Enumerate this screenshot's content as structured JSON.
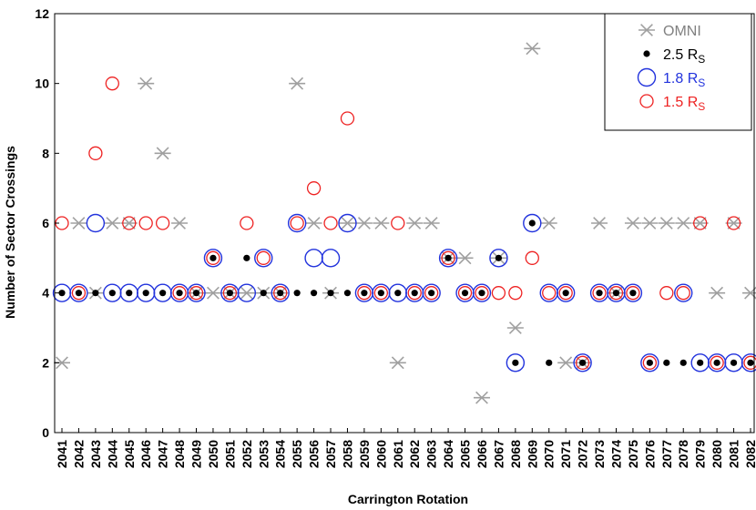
{
  "chart_data": {
    "type": "scatter",
    "title": "",
    "xlabel": "Carrington Rotation",
    "ylabel": "Number of Sector Crossings",
    "xlim": [
      2041,
      2082
    ],
    "ylim": [
      0,
      12
    ],
    "x_ticks": [
      "2041",
      "2042",
      "2043",
      "2044",
      "2045",
      "2046",
      "2047",
      "2048",
      "2049",
      "2050",
      "2051",
      "2052",
      "2053",
      "2054",
      "2055",
      "2056",
      "2057",
      "2058",
      "2059",
      "2060",
      "2061",
      "2062",
      "2063",
      "2064",
      "2065",
      "2066",
      "2067",
      "2068",
      "2069",
      "2070",
      "2071",
      "2072",
      "2073",
      "2074",
      "2075",
      "2076",
      "2077",
      "2078",
      "2079",
      "2080",
      "2081",
      "2082"
    ],
    "y_ticks": [
      "0",
      "2",
      "4",
      "6",
      "8",
      "10",
      "12"
    ],
    "grid": false,
    "legend_position": "top-right",
    "series": [
      {
        "name": "OMNI",
        "marker": "asterisk",
        "color": "#a0a0a0",
        "points": [
          [
            2041,
            2
          ],
          [
            2042,
            6
          ],
          [
            2043,
            4
          ],
          [
            2044,
            6
          ],
          [
            2045,
            6
          ],
          [
            2046,
            10
          ],
          [
            2047,
            8
          ],
          [
            2048,
            6
          ],
          [
            2049,
            4
          ],
          [
            2050,
            4
          ],
          [
            2051,
            4
          ],
          [
            2052,
            4
          ],
          [
            2053,
            4
          ],
          [
            2054,
            4
          ],
          [
            2055,
            10
          ],
          [
            2056,
            6
          ],
          [
            2057,
            4
          ],
          [
            2058,
            6
          ],
          [
            2059,
            6
          ],
          [
            2060,
            6
          ],
          [
            2061,
            2
          ],
          [
            2062,
            6
          ],
          [
            2063,
            6
          ],
          [
            2064,
            5
          ],
          [
            2065,
            5
          ],
          [
            2066,
            1
          ],
          [
            2067,
            5
          ],
          [
            2068,
            3
          ],
          [
            2069,
            11
          ],
          [
            2070,
            6
          ],
          [
            2071,
            2
          ],
          [
            2072,
            2
          ],
          [
            2073,
            6
          ],
          [
            2074,
            4
          ],
          [
            2075,
            6
          ],
          [
            2076,
            6
          ],
          [
            2077,
            6
          ],
          [
            2078,
            6
          ],
          [
            2079,
            6
          ],
          [
            2080,
            4
          ],
          [
            2081,
            6
          ],
          [
            2082,
            4
          ]
        ]
      },
      {
        "name": "2.5 R_S",
        "marker": "filled-circle",
        "color": "#000000",
        "points": [
          [
            2041,
            4
          ],
          [
            2042,
            4
          ],
          [
            2043,
            4
          ],
          [
            2044,
            4
          ],
          [
            2045,
            4
          ],
          [
            2046,
            4
          ],
          [
            2047,
            4
          ],
          [
            2048,
            4
          ],
          [
            2049,
            4
          ],
          [
            2050,
            5
          ],
          [
            2051,
            4
          ],
          [
            2052,
            5
          ],
          [
            2053,
            4
          ],
          [
            2054,
            4
          ],
          [
            2055,
            4
          ],
          [
            2056,
            4
          ],
          [
            2057,
            4
          ],
          [
            2058,
            4
          ],
          [
            2059,
            4
          ],
          [
            2060,
            4
          ],
          [
            2061,
            4
          ],
          [
            2062,
            4
          ],
          [
            2063,
            4
          ],
          [
            2064,
            5
          ],
          [
            2065,
            4
          ],
          [
            2066,
            4
          ],
          [
            2067,
            5
          ],
          [
            2068,
            2
          ],
          [
            2069,
            6
          ],
          [
            2070,
            2
          ],
          [
            2071,
            4
          ],
          [
            2072,
            2
          ],
          [
            2073,
            4
          ],
          [
            2074,
            4
          ],
          [
            2075,
            4
          ],
          [
            2076,
            2
          ],
          [
            2077,
            2
          ],
          [
            2078,
            2
          ],
          [
            2079,
            2
          ],
          [
            2080,
            2
          ],
          [
            2081,
            2
          ],
          [
            2082,
            2
          ]
        ]
      },
      {
        "name": "1.8 R_S",
        "marker": "open-circle-large",
        "color": "#2233dd",
        "points": [
          [
            2041,
            4
          ],
          [
            2042,
            4
          ],
          [
            2043,
            6
          ],
          [
            2044,
            4
          ],
          [
            2045,
            4
          ],
          [
            2046,
            4
          ],
          [
            2047,
            4
          ],
          [
            2048,
            4
          ],
          [
            2049,
            4
          ],
          [
            2050,
            5
          ],
          [
            2051,
            4
          ],
          [
            2052,
            4
          ],
          [
            2053,
            5
          ],
          [
            2054,
            4
          ],
          [
            2055,
            6
          ],
          [
            2056,
            5
          ],
          [
            2057,
            5
          ],
          [
            2058,
            6
          ],
          [
            2059,
            4
          ],
          [
            2060,
            4
          ],
          [
            2061,
            4
          ],
          [
            2062,
            4
          ],
          [
            2063,
            4
          ],
          [
            2064,
            5
          ],
          [
            2065,
            4
          ],
          [
            2066,
            4
          ],
          [
            2067,
            5
          ],
          [
            2068,
            2
          ],
          [
            2069,
            6
          ],
          [
            2070,
            4
          ],
          [
            2071,
            4
          ],
          [
            2072,
            2
          ],
          [
            2073,
            4
          ],
          [
            2074,
            4
          ],
          [
            2075,
            4
          ],
          [
            2076,
            2
          ],
          [
            2078,
            4
          ],
          [
            2079,
            2
          ],
          [
            2080,
            2
          ],
          [
            2081,
            2
          ],
          [
            2082,
            2
          ]
        ]
      },
      {
        "name": "1.5 R_S",
        "marker": "open-circle",
        "color": "#ee2222",
        "points": [
          [
            2041,
            6
          ],
          [
            2042,
            4
          ],
          [
            2043,
            8
          ],
          [
            2044,
            10
          ],
          [
            2045,
            6
          ],
          [
            2046,
            6
          ],
          [
            2047,
            6
          ],
          [
            2048,
            4
          ],
          [
            2049,
            4
          ],
          [
            2050,
            5
          ],
          [
            2051,
            4
          ],
          [
            2052,
            6
          ],
          [
            2053,
            5
          ],
          [
            2054,
            4
          ],
          [
            2055,
            6
          ],
          [
            2056,
            7
          ],
          [
            2057,
            6
          ],
          [
            2058,
            9
          ],
          [
            2059,
            4
          ],
          [
            2060,
            4
          ],
          [
            2061,
            6
          ],
          [
            2062,
            4
          ],
          [
            2063,
            4
          ],
          [
            2064,
            5
          ],
          [
            2065,
            4
          ],
          [
            2066,
            4
          ],
          [
            2067,
            4
          ],
          [
            2068,
            4
          ],
          [
            2069,
            5
          ],
          [
            2070,
            4
          ],
          [
            2071,
            4
          ],
          [
            2072,
            2
          ],
          [
            2073,
            4
          ],
          [
            2074,
            4
          ],
          [
            2075,
            4
          ],
          [
            2076,
            2
          ],
          [
            2077,
            4
          ],
          [
            2078,
            4
          ],
          [
            2079,
            6
          ],
          [
            2080,
            2
          ],
          [
            2081,
            6
          ],
          [
            2082,
            2
          ]
        ]
      }
    ]
  },
  "legend": {
    "items": [
      {
        "label": "OMNI",
        "sub": "",
        "color": "#808080",
        "marker": "asterisk"
      },
      {
        "label": "2.5 R",
        "sub": "S",
        "color": "#000000",
        "marker": "filled-circle"
      },
      {
        "label": "1.8 R",
        "sub": "S",
        "color": "#2233dd",
        "marker": "open-circle-large"
      },
      {
        "label": "1.5 R",
        "sub": "S",
        "color": "#ee2222",
        "marker": "open-circle"
      }
    ]
  }
}
